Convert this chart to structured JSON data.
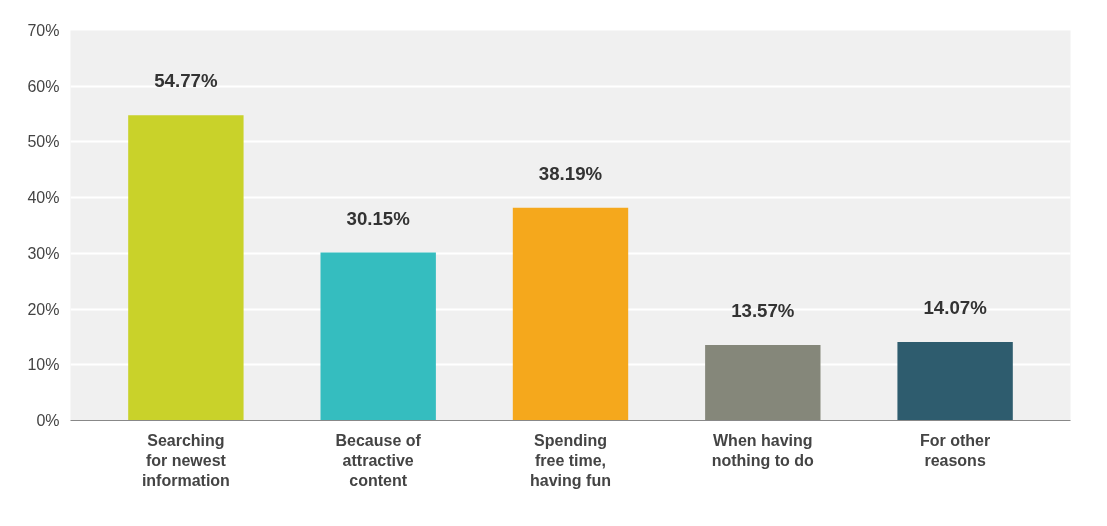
{
  "chart_data": {
    "type": "bar",
    "categories": [
      "Searching\nfor newest\ninformation",
      "Because of\nattractive\ncontent",
      "Spending\nfree time,\nhaving fun",
      "When having\nnothing to do",
      "For other\nreasons"
    ],
    "values": [
      54.77,
      30.15,
      38.19,
      13.57,
      14.07
    ],
    "colors": [
      "#c9d22a",
      "#35bdbf",
      "#f5a81c",
      "#85877a",
      "#2e5c6e"
    ],
    "value_labels": [
      "54.77%",
      "30.15%",
      "38.19%",
      "13.57%",
      "14.07%"
    ],
    "ylim": [
      0,
      70
    ],
    "yticks": [
      {
        "value": 0,
        "label": "0%"
      },
      {
        "value": 10,
        "label": "10%"
      },
      {
        "value": 20,
        "label": "20%"
      },
      {
        "value": 30,
        "label": "30%"
      },
      {
        "value": 40,
        "label": "40%"
      },
      {
        "value": 50,
        "label": "50%"
      },
      {
        "value": 60,
        "label": "60%"
      },
      {
        "value": 70,
        "label": "70%"
      }
    ],
    "grid": "y"
  }
}
